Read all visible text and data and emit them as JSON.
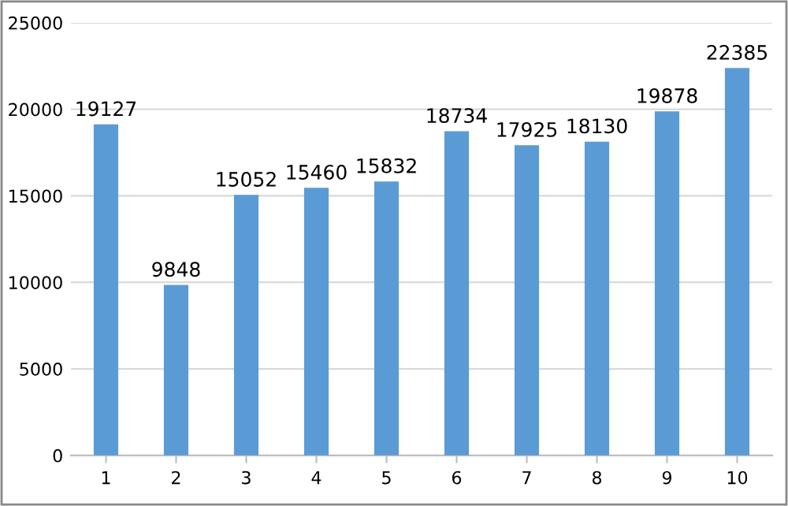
{
  "chart_data": {
    "type": "bar",
    "categories": [
      "1",
      "2",
      "3",
      "4",
      "5",
      "6",
      "7",
      "8",
      "9",
      "10"
    ],
    "values": [
      19127,
      9848,
      15052,
      15460,
      15832,
      18734,
      17925,
      18130,
      19878,
      22385
    ],
    "color": "#5b9bd5",
    "ylim": [
      0,
      25000
    ],
    "yticks": [
      0,
      5000,
      10000,
      15000,
      20000,
      25000
    ],
    "grid": "y",
    "data_labels": true
  }
}
